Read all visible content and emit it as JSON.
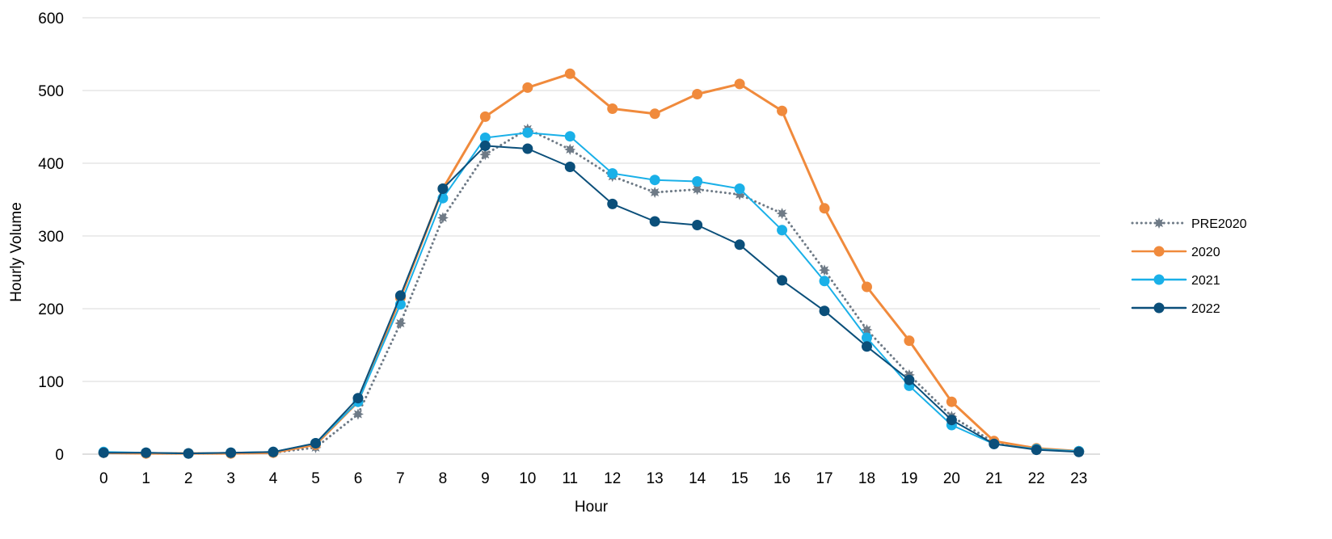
{
  "chart_data": {
    "type": "line",
    "title": "",
    "xlabel": "Hour",
    "ylabel": "Hourly Volume",
    "x": [
      0,
      1,
      2,
      3,
      4,
      5,
      6,
      7,
      8,
      9,
      10,
      11,
      12,
      13,
      14,
      15,
      16,
      17,
      18,
      19,
      20,
      21,
      22,
      23
    ],
    "x_tick_labels": [
      "0",
      "1",
      "2",
      "3",
      "4",
      "5",
      "6",
      "7",
      "8",
      "9",
      "10",
      "11",
      "12",
      "13",
      "14",
      "15",
      "16",
      "17",
      "18",
      "19",
      "20",
      "21",
      "22",
      "23"
    ],
    "ylim": [
      0,
      600
    ],
    "y_ticks": [
      0,
      100,
      200,
      300,
      400,
      500,
      600
    ],
    "y_tick_labels": [
      "0",
      "100",
      "200",
      "300",
      "400",
      "500",
      "600"
    ],
    "grid": "horizontal",
    "legend_position": "right",
    "series": [
      {
        "name": "PRE2020",
        "color": "#6e7a86",
        "style": "dotted",
        "marker": "star",
        "values": [
          2,
          1,
          1,
          1,
          2,
          9,
          55,
          180,
          325,
          412,
          447,
          419,
          382,
          360,
          364,
          357,
          331,
          253,
          171,
          109,
          52,
          16,
          7,
          4
        ]
      },
      {
        "name": "2020",
        "color": "#f08a3c",
        "style": "solid",
        "marker": "circle",
        "values": [
          2,
          1,
          1,
          1,
          2,
          13,
          72,
          215,
          365,
          464,
          504,
          523,
          475,
          468,
          495,
          509,
          472,
          338,
          230,
          156,
          72,
          18,
          8,
          4
        ]
      },
      {
        "name": "2021",
        "color": "#1ab0e8",
        "style": "solid",
        "marker": "circle",
        "values": [
          3,
          2,
          1,
          2,
          3,
          15,
          72,
          206,
          352,
          435,
          442,
          437,
          386,
          377,
          375,
          365,
          308,
          238,
          160,
          94,
          40,
          14,
          7,
          4
        ]
      },
      {
        "name": "2022",
        "color": "#0b4f7a",
        "style": "solid",
        "marker": "circle",
        "values": [
          2,
          2,
          1,
          2,
          3,
          15,
          77,
          218,
          365,
          424,
          420,
          395,
          344,
          320,
          315,
          288,
          239,
          197,
          148,
          102,
          47,
          14,
          6,
          3
        ]
      }
    ]
  }
}
